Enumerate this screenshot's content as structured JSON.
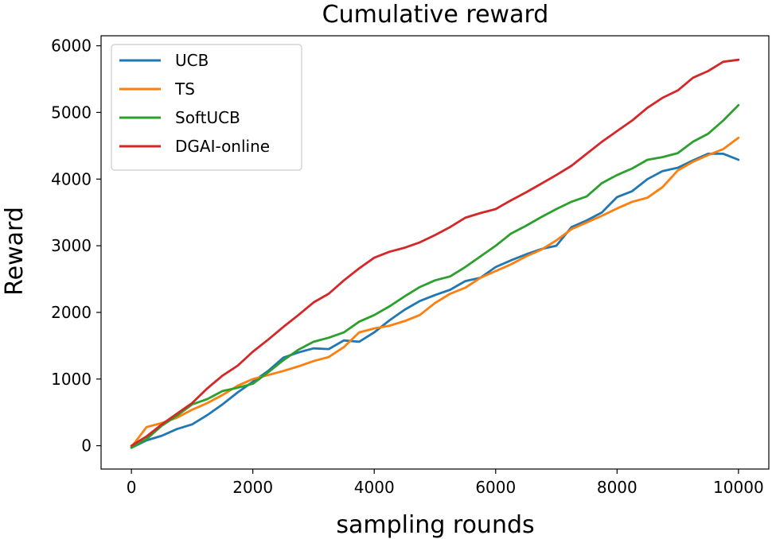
{
  "chart_data": {
    "type": "line",
    "title": "Cumulative reward",
    "xlabel": "sampling rounds",
    "ylabel": "Reward",
    "xlim": [
      -500,
      10500
    ],
    "ylim": [
      -350,
      6150
    ],
    "xticks": [
      0,
      2000,
      4000,
      6000,
      8000,
      10000
    ],
    "yticks": [
      0,
      1000,
      2000,
      3000,
      4000,
      5000,
      6000
    ],
    "grid": false,
    "legend_position": "top-left",
    "x": [
      0,
      250,
      500,
      750,
      1000,
      1250,
      1500,
      1750,
      2000,
      2250,
      2500,
      2750,
      3000,
      3250,
      3500,
      3750,
      4000,
      4250,
      4500,
      4750,
      5000,
      5250,
      5500,
      5750,
      6000,
      6250,
      6500,
      6750,
      7000,
      7250,
      7500,
      7750,
      8000,
      8250,
      8500,
      8750,
      9000,
      9250,
      9500,
      9750,
      10000
    ],
    "series": [
      {
        "name": "UCB",
        "color": "#1f77b4",
        "values": [
          -30,
          80,
          150,
          250,
          320,
          460,
          620,
          800,
          960,
          1120,
          1320,
          1400,
          1460,
          1450,
          1580,
          1560,
          1700,
          1880,
          2040,
          2170,
          2260,
          2340,
          2470,
          2520,
          2680,
          2780,
          2870,
          2950,
          3000,
          3280,
          3380,
          3500,
          3730,
          3820,
          4000,
          4120,
          4170,
          4280,
          4380,
          4380,
          4290
        ]
      },
      {
        "name": "TS",
        "color": "#ff7f0e",
        "values": [
          -20,
          280,
          340,
          420,
          540,
          640,
          760,
          900,
          1000,
          1060,
          1120,
          1190,
          1270,
          1330,
          1480,
          1700,
          1760,
          1800,
          1870,
          1960,
          2140,
          2280,
          2370,
          2520,
          2620,
          2720,
          2840,
          2940,
          3080,
          3250,
          3350,
          3450,
          3560,
          3660,
          3720,
          3880,
          4130,
          4260,
          4360,
          4450,
          4620
        ]
      },
      {
        "name": "SoftUCB",
        "color": "#2ca02c",
        "values": [
          -30,
          100,
          300,
          450,
          620,
          700,
          820,
          870,
          930,
          1100,
          1280,
          1440,
          1560,
          1620,
          1700,
          1860,
          1960,
          2090,
          2240,
          2380,
          2480,
          2540,
          2680,
          2840,
          3000,
          3180,
          3300,
          3430,
          3550,
          3660,
          3740,
          3940,
          4060,
          4160,
          4290,
          4330,
          4390,
          4560,
          4680,
          4880,
          5110
        ]
      },
      {
        "name": "DGAI-online",
        "color": "#d62728",
        "values": [
          0,
          140,
          320,
          480,
          640,
          860,
          1050,
          1200,
          1410,
          1590,
          1780,
          1960,
          2150,
          2280,
          2480,
          2660,
          2820,
          2910,
          2970,
          3050,
          3160,
          3280,
          3420,
          3490,
          3550,
          3680,
          3800,
          3930,
          4060,
          4200,
          4380,
          4560,
          4720,
          4880,
          5070,
          5220,
          5330,
          5520,
          5620,
          5760,
          5790
        ]
      }
    ]
  }
}
